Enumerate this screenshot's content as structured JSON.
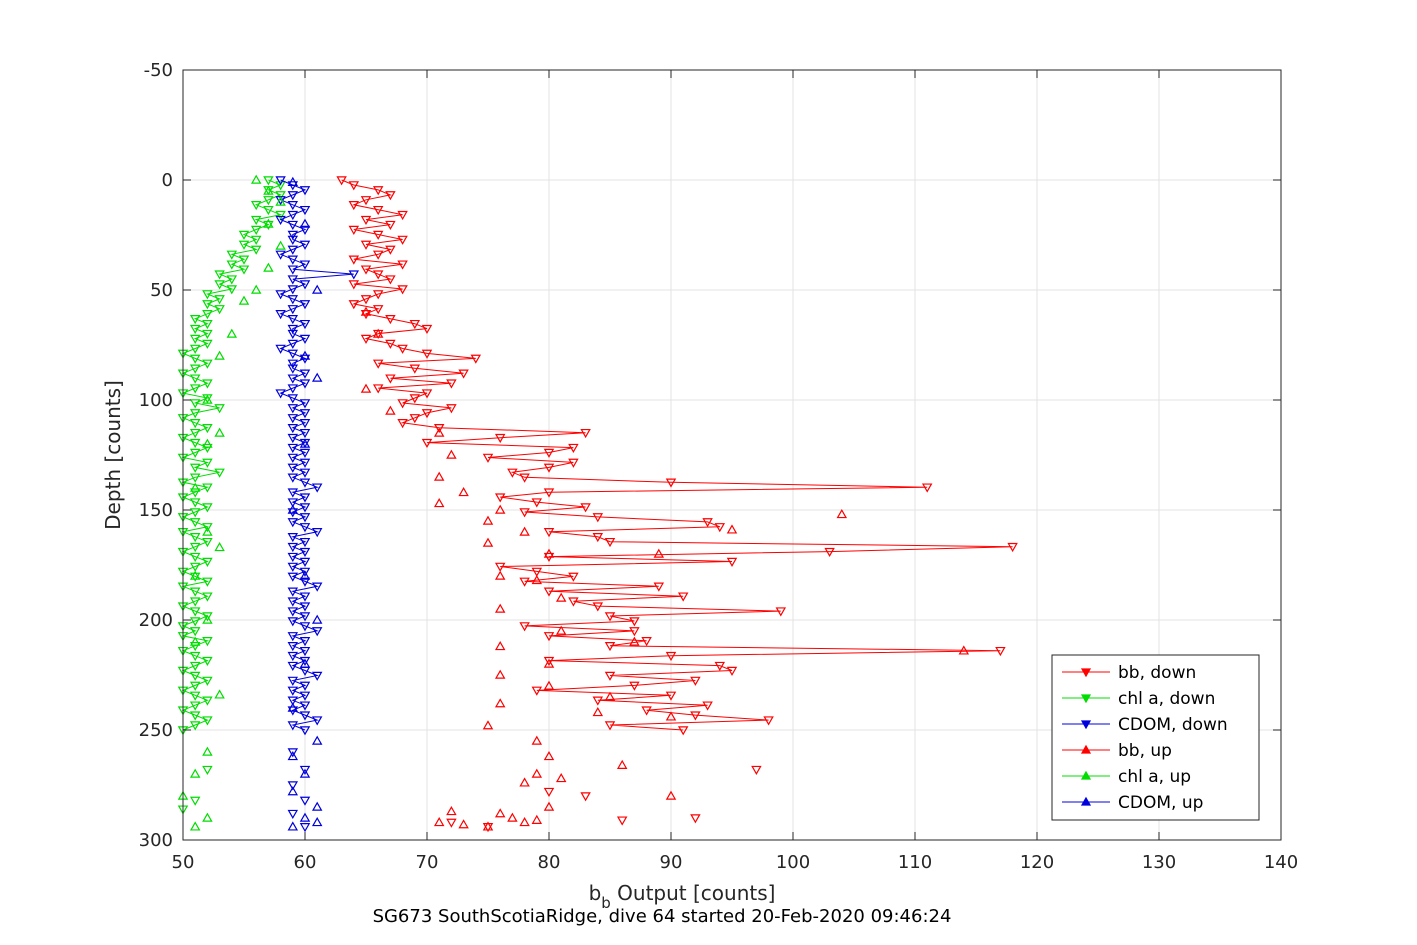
{
  "chart_data": {
    "type": "scatter",
    "title": "",
    "caption": "SG673 SouthScotiaRidge, dive 64 started 20-Feb-2020 09:46:24",
    "xlabel": "b_b Output [counts]",
    "xlabel_main": "b",
    "xlabel_sub": "b",
    "xlabel_rest": " Output [counts]",
    "ylabel": "Depth [counts]",
    "xlim": [
      50,
      140
    ],
    "ylim": [
      -50,
      300
    ],
    "y_reversed": true,
    "grid": true,
    "legend_position": "bottom-right",
    "xticks": [
      "50",
      "60",
      "70",
      "80",
      "90",
      "100",
      "110",
      "120",
      "130",
      "140"
    ],
    "yticks": [
      "-50",
      "0",
      "50",
      "100",
      "150",
      "200",
      "250",
      "300"
    ],
    "colors": {
      "bb": "#ff0000",
      "chl": "#00dd00",
      "cdom": "#0000dd"
    },
    "series": [
      {
        "name": "bb, down",
        "color": "#ff0000",
        "marker": "triangle-down",
        "line": true,
        "depth_step": 2,
        "depth_range": [
          0,
          250
        ],
        "x": [
          63,
          64,
          66,
          67,
          65,
          64,
          66,
          68,
          65,
          67,
          64,
          66,
          68,
          65,
          67,
          66,
          64,
          68,
          65,
          66,
          67,
          64,
          68,
          66,
          65,
          64,
          66,
          65,
          67,
          69,
          70,
          66,
          65,
          67,
          68,
          70,
          74,
          66,
          69,
          73,
          67,
          72,
          66,
          70,
          69,
          68,
          72,
          70,
          69,
          68,
          71,
          83,
          76,
          70,
          82,
          80,
          75,
          82,
          80,
          77,
          78,
          90,
          111,
          80,
          76,
          79,
          83,
          78,
          84,
          93,
          94,
          80,
          84,
          85,
          118,
          103,
          80,
          95,
          76,
          79,
          82,
          78,
          89,
          80,
          91,
          82,
          84,
          99,
          85,
          87,
          78,
          87,
          80,
          88,
          85,
          117,
          90,
          80,
          94,
          95,
          85,
          92,
          87,
          79,
          90,
          84,
          93,
          88,
          92,
          98,
          85,
          91
        ],
        "note": ""
      },
      {
        "name": "chl a, down",
        "color": "#00dd00",
        "marker": "triangle-down",
        "line": true,
        "depth_step": 2,
        "depth_range": [
          0,
          250
        ],
        "x": [
          57,
          58,
          57,
          58,
          57,
          56,
          57,
          58,
          56,
          57,
          56,
          55,
          56,
          55,
          56,
          54,
          55,
          54,
          55,
          53,
          54,
          53,
          54,
          52,
          53,
          52,
          53,
          52,
          51,
          52,
          51,
          52,
          51,
          52,
          51,
          50,
          51,
          52,
          51,
          50,
          51,
          52,
          51,
          50,
          52,
          51,
          53,
          51,
          50,
          51,
          52,
          51,
          50,
          51,
          52,
          51,
          50,
          52,
          51,
          53,
          51,
          50,
          52,
          51,
          50,
          51,
          52,
          51,
          50,
          51,
          52,
          50,
          51,
          52,
          51,
          50,
          51,
          52,
          51,
          50,
          51,
          52,
          50,
          51,
          52,
          51,
          50,
          51,
          52,
          51,
          50,
          51,
          50,
          52,
          51,
          50,
          51,
          52,
          51,
          50,
          51,
          52,
          51,
          50,
          51,
          52,
          51,
          50,
          51,
          52,
          51,
          50
        ],
        "note": ""
      },
      {
        "name": "CDOM, down",
        "color": "#0000dd",
        "marker": "triangle-down",
        "line": true,
        "depth_step": 2,
        "depth_range": [
          0,
          250
        ],
        "x": [
          58,
          59,
          60,
          59,
          58,
          59,
          60,
          59,
          58,
          59,
          60,
          59,
          59,
          60,
          59,
          58,
          59,
          60,
          59,
          64,
          59,
          60,
          59,
          58,
          59,
          60,
          59,
          58,
          59,
          60,
          59,
          59,
          60,
          59,
          58,
          59,
          60,
          59,
          59,
          60,
          59,
          60,
          59,
          58,
          59,
          60,
          59,
          60,
          59,
          60,
          59,
          60,
          59,
          60,
          59,
          60,
          59,
          60,
          59,
          60,
          59,
          60,
          61,
          59,
          60,
          59,
          60,
          59,
          60,
          59,
          60,
          61,
          59,
          60,
          59,
          60,
          59,
          60,
          59,
          60,
          59,
          60,
          61,
          59,
          60,
          59,
          60,
          59,
          60,
          59,
          60,
          61,
          59,
          60,
          59,
          60,
          59,
          60,
          59,
          60,
          61,
          59,
          60,
          59,
          60,
          59,
          60,
          59,
          60,
          61,
          59,
          60
        ],
        "note": ""
      },
      {
        "name": "bb, up",
        "color": "#ff0000",
        "marker": "triangle-up",
        "line": false,
        "points": [
          [
            65,
            60
          ],
          [
            66,
            70
          ],
          [
            65,
            95
          ],
          [
            67,
            105
          ],
          [
            71,
            115
          ],
          [
            72,
            125
          ],
          [
            71,
            135
          ],
          [
            73,
            142
          ],
          [
            71,
            147
          ],
          [
            76,
            150
          ],
          [
            75,
            155
          ],
          [
            78,
            160
          ],
          [
            95,
            159
          ],
          [
            104,
            152
          ],
          [
            75,
            165
          ],
          [
            80,
            170
          ],
          [
            89,
            170
          ],
          [
            76,
            180
          ],
          [
            79,
            182
          ],
          [
            81,
            190
          ],
          [
            76,
            195
          ],
          [
            81,
            205
          ],
          [
            87,
            210
          ],
          [
            76,
            212
          ],
          [
            114,
            214
          ],
          [
            80,
            220
          ],
          [
            76,
            225
          ],
          [
            80,
            230
          ],
          [
            85,
            235
          ],
          [
            76,
            238
          ],
          [
            84,
            242
          ],
          [
            90,
            244
          ],
          [
            75,
            248
          ],
          [
            79,
            255
          ],
          [
            80,
            262
          ],
          [
            86,
            266
          ],
          [
            79,
            270
          ],
          [
            81,
            272
          ],
          [
            78,
            274
          ],
          [
            90,
            280
          ],
          [
            80,
            285
          ],
          [
            72,
            287
          ],
          [
            76,
            288
          ],
          [
            77,
            290
          ],
          [
            71,
            292
          ],
          [
            73,
            293
          ],
          [
            75,
            294
          ],
          [
            79,
            291
          ],
          [
            78,
            292
          ]
        ]
      },
      {
        "name": "chl a, up",
        "color": "#00dd00",
        "marker": "triangle-up",
        "line": false,
        "points": [
          [
            56,
            0
          ],
          [
            57,
            5
          ],
          [
            58,
            10
          ],
          [
            57,
            20
          ],
          [
            58,
            30
          ],
          [
            57,
            40
          ],
          [
            56,
            50
          ],
          [
            55,
            55
          ],
          [
            54,
            70
          ],
          [
            53,
            80
          ],
          [
            52,
            100
          ],
          [
            53,
            115
          ],
          [
            52,
            120
          ],
          [
            51,
            140
          ],
          [
            52,
            160
          ],
          [
            53,
            167
          ],
          [
            51,
            180
          ],
          [
            52,
            200
          ],
          [
            51,
            210
          ],
          [
            53,
            234
          ],
          [
            52,
            260
          ],
          [
            51,
            270
          ],
          [
            50,
            280
          ],
          [
            52,
            290
          ],
          [
            51,
            294
          ]
        ]
      },
      {
        "name": "CDOM, up",
        "color": "#0000dd",
        "marker": "triangle-up",
        "line": false,
        "points": [
          [
            59,
            1
          ],
          [
            60,
            20
          ],
          [
            61,
            50
          ],
          [
            60,
            80
          ],
          [
            61,
            90
          ],
          [
            60,
            120
          ],
          [
            59,
            150
          ],
          [
            60,
            180
          ],
          [
            61,
            200
          ],
          [
            60,
            220
          ],
          [
            59,
            240
          ],
          [
            61,
            255
          ],
          [
            59,
            262
          ],
          [
            60,
            270
          ],
          [
            59,
            278
          ],
          [
            61,
            285
          ],
          [
            60,
            290
          ],
          [
            59,
            294
          ],
          [
            61,
            292
          ]
        ]
      }
    ],
    "extra_down_points": {
      "bb": [
        [
          97,
          268
        ],
        [
          80,
          278
        ],
        [
          83,
          280
        ],
        [
          92,
          290
        ],
        [
          86,
          291
        ],
        [
          72,
          292
        ],
        [
          75,
          294
        ]
      ],
      "chl": [
        [
          52,
          268
        ],
        [
          51,
          282
        ],
        [
          50,
          286
        ]
      ],
      "cdom": [
        [
          59,
          260
        ],
        [
          60,
          268
        ],
        [
          59,
          275
        ],
        [
          60,
          282
        ],
        [
          59,
          288
        ],
        [
          60,
          294
        ]
      ]
    },
    "legend": [
      "bb, down",
      "chl a, down",
      "CDOM, down",
      "bb, up",
      "chl a, up",
      "CDOM, up"
    ]
  }
}
